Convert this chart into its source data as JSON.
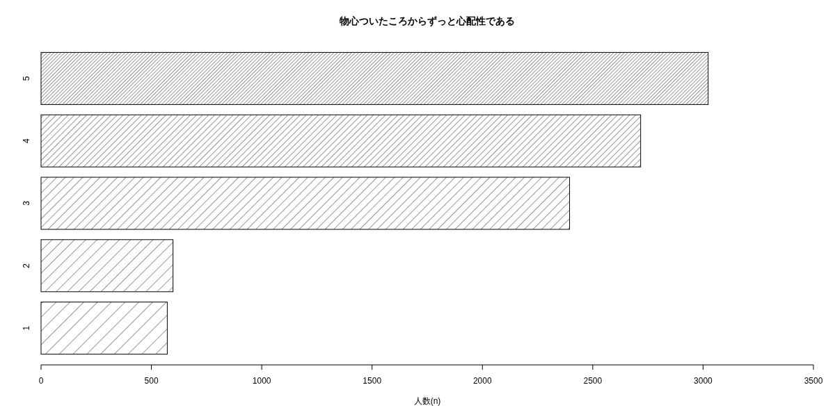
{
  "chart_data": {
    "type": "bar",
    "orientation": "horizontal",
    "title": "物心ついたころからずっと心配性である",
    "xlabel": "人数(n)",
    "categories": [
      "5",
      "4",
      "3",
      "2",
      "1"
    ],
    "values": [
      3023,
      2717,
      2395,
      598,
      572
    ],
    "color": "#000000",
    "xlim": [
      0,
      3500
    ],
    "xticks": [
      0,
      500,
      1000,
      1500,
      2000,
      2500,
      3000,
      3500
    ],
    "grid": false
  }
}
